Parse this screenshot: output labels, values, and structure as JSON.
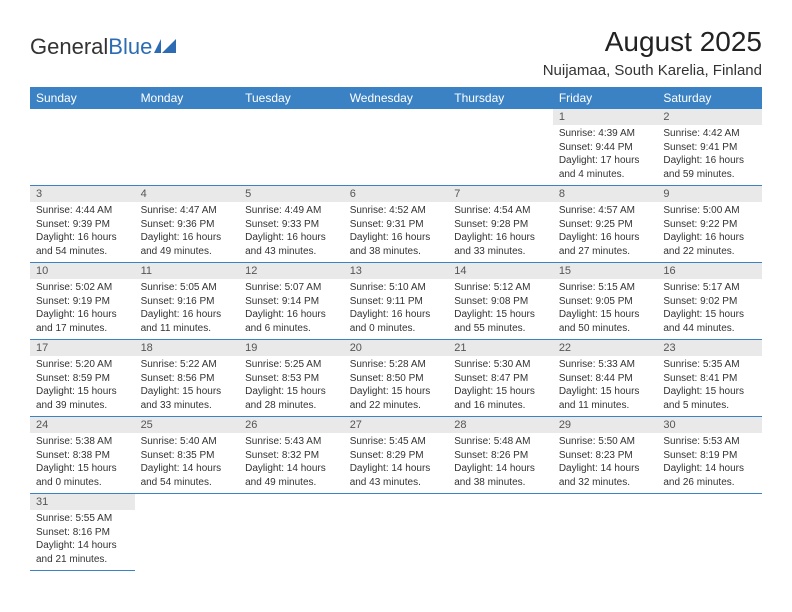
{
  "logo": {
    "text1": "General",
    "text2": "Blue"
  },
  "title": "August 2025",
  "subtitle": "Nuijamaa, South Karelia, Finland",
  "colors": {
    "header_bg": "#3b82c4",
    "header_fg": "#ffffff",
    "daynum_bg": "#e9e9e9",
    "daynum_fg": "#555555",
    "rule": "#3b82c4",
    "logo_blue": "#2d6cb3"
  },
  "dayNames": [
    "Sunday",
    "Monday",
    "Tuesday",
    "Wednesday",
    "Thursday",
    "Friday",
    "Saturday"
  ],
  "firstWeekday": 5,
  "daysInMonth": 31,
  "days": {
    "1": {
      "sunrise": "4:39 AM",
      "sunset": "9:44 PM",
      "daylight": "17 hours and 4 minutes."
    },
    "2": {
      "sunrise": "4:42 AM",
      "sunset": "9:41 PM",
      "daylight": "16 hours and 59 minutes."
    },
    "3": {
      "sunrise": "4:44 AM",
      "sunset": "9:39 PM",
      "daylight": "16 hours and 54 minutes."
    },
    "4": {
      "sunrise": "4:47 AM",
      "sunset": "9:36 PM",
      "daylight": "16 hours and 49 minutes."
    },
    "5": {
      "sunrise": "4:49 AM",
      "sunset": "9:33 PM",
      "daylight": "16 hours and 43 minutes."
    },
    "6": {
      "sunrise": "4:52 AM",
      "sunset": "9:31 PM",
      "daylight": "16 hours and 38 minutes."
    },
    "7": {
      "sunrise": "4:54 AM",
      "sunset": "9:28 PM",
      "daylight": "16 hours and 33 minutes."
    },
    "8": {
      "sunrise": "4:57 AM",
      "sunset": "9:25 PM",
      "daylight": "16 hours and 27 minutes."
    },
    "9": {
      "sunrise": "5:00 AM",
      "sunset": "9:22 PM",
      "daylight": "16 hours and 22 minutes."
    },
    "10": {
      "sunrise": "5:02 AM",
      "sunset": "9:19 PM",
      "daylight": "16 hours and 17 minutes."
    },
    "11": {
      "sunrise": "5:05 AM",
      "sunset": "9:16 PM",
      "daylight": "16 hours and 11 minutes."
    },
    "12": {
      "sunrise": "5:07 AM",
      "sunset": "9:14 PM",
      "daylight": "16 hours and 6 minutes."
    },
    "13": {
      "sunrise": "5:10 AM",
      "sunset": "9:11 PM",
      "daylight": "16 hours and 0 minutes."
    },
    "14": {
      "sunrise": "5:12 AM",
      "sunset": "9:08 PM",
      "daylight": "15 hours and 55 minutes."
    },
    "15": {
      "sunrise": "5:15 AM",
      "sunset": "9:05 PM",
      "daylight": "15 hours and 50 minutes."
    },
    "16": {
      "sunrise": "5:17 AM",
      "sunset": "9:02 PM",
      "daylight": "15 hours and 44 minutes."
    },
    "17": {
      "sunrise": "5:20 AM",
      "sunset": "8:59 PM",
      "daylight": "15 hours and 39 minutes."
    },
    "18": {
      "sunrise": "5:22 AM",
      "sunset": "8:56 PM",
      "daylight": "15 hours and 33 minutes."
    },
    "19": {
      "sunrise": "5:25 AM",
      "sunset": "8:53 PM",
      "daylight": "15 hours and 28 minutes."
    },
    "20": {
      "sunrise": "5:28 AM",
      "sunset": "8:50 PM",
      "daylight": "15 hours and 22 minutes."
    },
    "21": {
      "sunrise": "5:30 AM",
      "sunset": "8:47 PM",
      "daylight": "15 hours and 16 minutes."
    },
    "22": {
      "sunrise": "5:33 AM",
      "sunset": "8:44 PM",
      "daylight": "15 hours and 11 minutes."
    },
    "23": {
      "sunrise": "5:35 AM",
      "sunset": "8:41 PM",
      "daylight": "15 hours and 5 minutes."
    },
    "24": {
      "sunrise": "5:38 AM",
      "sunset": "8:38 PM",
      "daylight": "15 hours and 0 minutes."
    },
    "25": {
      "sunrise": "5:40 AM",
      "sunset": "8:35 PM",
      "daylight": "14 hours and 54 minutes."
    },
    "26": {
      "sunrise": "5:43 AM",
      "sunset": "8:32 PM",
      "daylight": "14 hours and 49 minutes."
    },
    "27": {
      "sunrise": "5:45 AM",
      "sunset": "8:29 PM",
      "daylight": "14 hours and 43 minutes."
    },
    "28": {
      "sunrise": "5:48 AM",
      "sunset": "8:26 PM",
      "daylight": "14 hours and 38 minutes."
    },
    "29": {
      "sunrise": "5:50 AM",
      "sunset": "8:23 PM",
      "daylight": "14 hours and 32 minutes."
    },
    "30": {
      "sunrise": "5:53 AM",
      "sunset": "8:19 PM",
      "daylight": "14 hours and 26 minutes."
    },
    "31": {
      "sunrise": "5:55 AM",
      "sunset": "8:16 PM",
      "daylight": "14 hours and 21 minutes."
    }
  },
  "labels": {
    "sunrise": "Sunrise: ",
    "sunset": "Sunset: ",
    "daylight": "Daylight: "
  }
}
